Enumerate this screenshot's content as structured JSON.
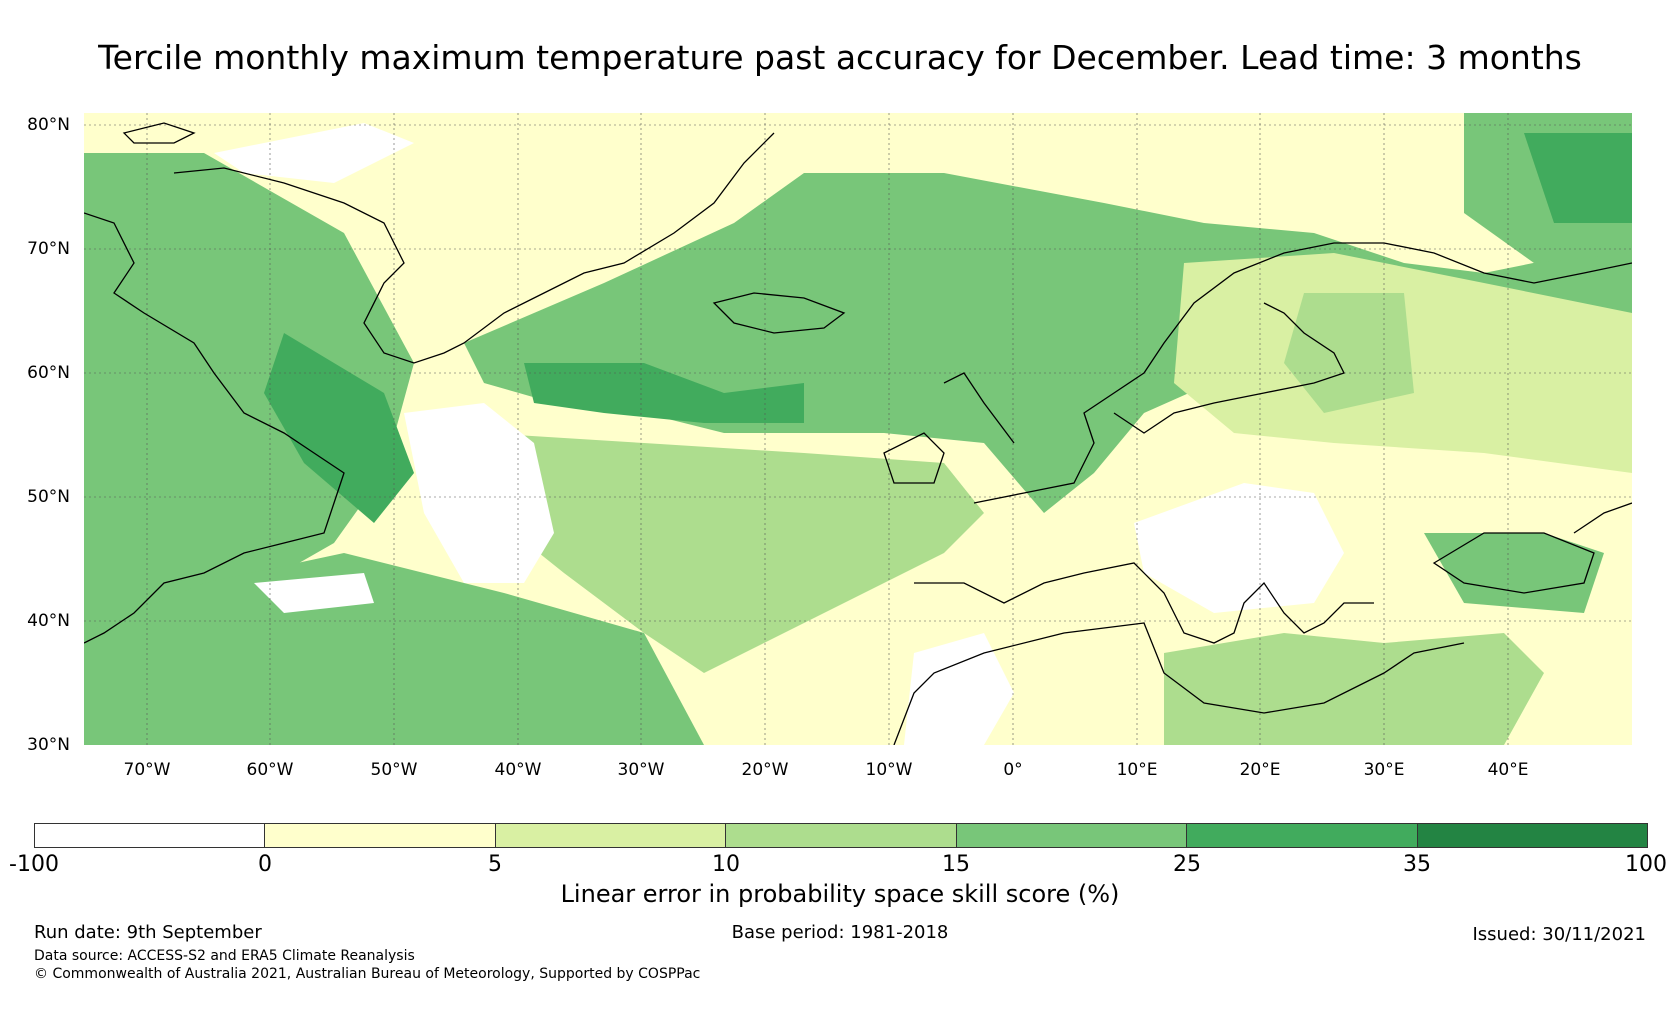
{
  "title": "Tercile monthly maximum temperature past accuracy for December. Lead time: 3 months",
  "map": {
    "lat_labels": [
      "80°N",
      "70°N",
      "60°N",
      "50°N",
      "40°N",
      "30°N"
    ],
    "lon_labels": [
      "70°W",
      "60°W",
      "50°W",
      "40°W",
      "30°W",
      "20°W",
      "10°W",
      "0°",
      "10°E",
      "20°E",
      "30°E",
      "40°E"
    ],
    "extent": {
      "lon_min": -75,
      "lon_max": 50,
      "lat_min": 30,
      "lat_max": 81
    },
    "land_outline_color": "#000000",
    "gridline_style": "dotted"
  },
  "colorbar": {
    "ticks": [
      "-100",
      "0",
      "5",
      "10",
      "15",
      "25",
      "35",
      "100"
    ],
    "colors": [
      "#ffffff",
      "#ffffcc",
      "#d9f0a3",
      "#addd8e",
      "#78c679",
      "#41ab5d",
      "#238443"
    ],
    "label": "Linear error in probability space skill score (%)"
  },
  "footer": {
    "run_date": "Run date: 9th September",
    "base_period": "Base period: 1981-2018",
    "issued": "Issued: 30/11/2021",
    "data_source": "Data source: ACCESS-S2 and ERA5 Climate Reanalysis",
    "copyright": "© Commonwealth of Australia 2021, Australian Bureau of Meteorology, Supported by COSPPac"
  }
}
